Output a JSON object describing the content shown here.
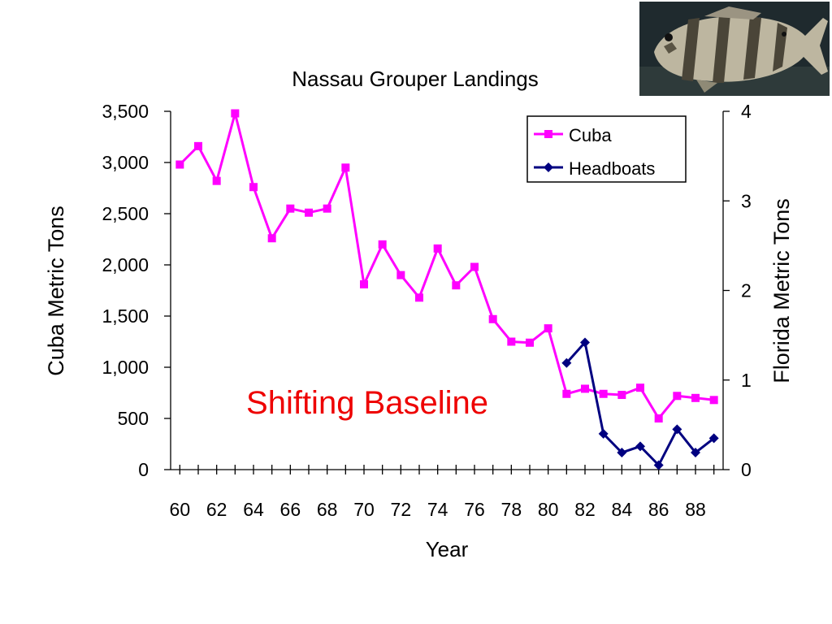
{
  "chart_data": {
    "type": "line",
    "title": "Nassau Grouper Landings",
    "xlabel": "Year",
    "ylabel_left": "Cuba Metric Tons",
    "ylabel_right": "Florida Metric Tons",
    "annotation": "Shifting Baseline",
    "x": [
      60,
      61,
      62,
      63,
      64,
      65,
      66,
      67,
      68,
      69,
      70,
      71,
      72,
      73,
      74,
      75,
      76,
      77,
      78,
      79,
      80,
      81,
      82,
      83,
      84,
      85,
      86,
      87,
      88,
      89
    ],
    "x_tick_labels": [
      "60",
      "62",
      "64",
      "66",
      "68",
      "70",
      "72",
      "74",
      "76",
      "78",
      "80",
      "82",
      "84",
      "86",
      "88"
    ],
    "ylim_left": [
      0,
      3500
    ],
    "yticks_left": [
      "0",
      "500",
      "1,000",
      "1,500",
      "2,000",
      "2,500",
      "3,000",
      "3,500"
    ],
    "ylim_right": [
      0,
      4
    ],
    "yticks_right": [
      "0",
      "1",
      "2",
      "3",
      "4"
    ],
    "grid": false,
    "legend_position": "top-right",
    "series": [
      {
        "name": "Cuba",
        "axis": "left",
        "color": "#ff00ff",
        "marker": "square",
        "x": [
          60,
          61,
          62,
          63,
          64,
          65,
          66,
          67,
          68,
          69,
          70,
          71,
          72,
          73,
          74,
          75,
          76,
          77,
          78,
          79,
          80,
          81,
          82,
          83,
          84,
          85,
          86,
          87,
          88,
          89
        ],
        "values": [
          2980,
          3160,
          2820,
          3480,
          2760,
          2260,
          2550,
          2510,
          2550,
          2950,
          1810,
          2200,
          1900,
          1680,
          2160,
          1800,
          1980,
          1470,
          1250,
          1240,
          1380,
          740,
          790,
          740,
          730,
          800,
          500,
          720,
          700,
          680
        ]
      },
      {
        "name": "Headboats",
        "axis": "right",
        "color": "#000080",
        "marker": "diamond",
        "x": [
          81,
          82,
          83,
          84,
          85,
          86,
          87,
          88,
          89
        ],
        "values": [
          1.19,
          1.42,
          0.4,
          0.19,
          0.26,
          0.05,
          0.45,
          0.19,
          0.35
        ]
      }
    ]
  },
  "decorations": {
    "photo_subject": "nassau-grouper-fish",
    "annotation_color": "#ee0000"
  }
}
